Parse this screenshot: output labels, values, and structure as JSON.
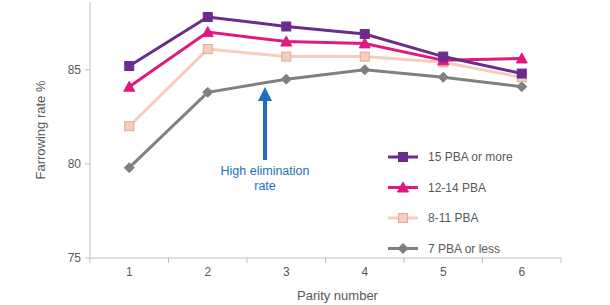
{
  "chart_data": {
    "type": "line",
    "x_label": "Parity number",
    "y_label": "Farrowing rate %",
    "annotation": "High elimination rate",
    "categories": [
      "1",
      "2",
      "3",
      "4",
      "5",
      "6"
    ],
    "ylim": [
      75,
      88.6
    ],
    "yticks": [
      75,
      80,
      85
    ],
    "grid": false,
    "legend": "lower right",
    "series": [
      {
        "name": "15 PBA or more",
        "color": "#6b2d8c",
        "marker": "square",
        "line_style": "solid",
        "values": [
          85.2,
          87.8,
          87.3,
          86.9,
          85.7,
          84.8
        ]
      },
      {
        "name": "12-14 PBA",
        "color": "#e0197d",
        "marker": "triangle",
        "line_style": "solid",
        "values": [
          84.1,
          87.0,
          86.5,
          86.4,
          85.5,
          85.6
        ]
      },
      {
        "name": "8-11 PBA",
        "color": "#f6cdbd",
        "marker": "square",
        "line_style": "solid",
        "values": [
          82.0,
          86.1,
          85.7,
          85.7,
          85.4,
          84.6
        ]
      },
      {
        "name": "7 PBA or less",
        "color": "#808080",
        "marker": "diamond",
        "line_style": "solid",
        "values": [
          79.8,
          83.8,
          84.5,
          85.0,
          84.6,
          84.1
        ]
      }
    ]
  }
}
